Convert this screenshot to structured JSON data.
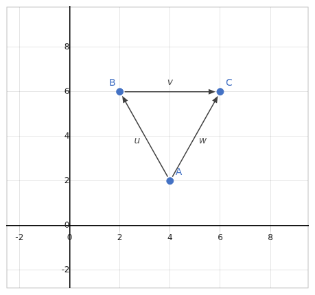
{
  "chart_data": {
    "type": "scatter",
    "points": [
      {
        "name": "A",
        "x": 4,
        "y": 2
      },
      {
        "name": "B",
        "x": 2,
        "y": 6
      },
      {
        "name": "C",
        "x": 6,
        "y": 6
      }
    ],
    "edges": [
      {
        "from": "A",
        "to": "B",
        "label": "u",
        "color": "#404040"
      },
      {
        "from": "B",
        "to": "C",
        "label": "v",
        "color": "#404040"
      },
      {
        "from": "A",
        "to": "C",
        "label": "w",
        "color": "#404040"
      }
    ],
    "color": "#4472C4",
    "xlim": [
      -2.5,
      9.5
    ],
    "ylim": [
      -2.8,
      9.8
    ],
    "xticks": [
      -2,
      0,
      2,
      4,
      6,
      8
    ],
    "yticks": [
      -2,
      0,
      2,
      4,
      6,
      8
    ],
    "grid": true
  }
}
